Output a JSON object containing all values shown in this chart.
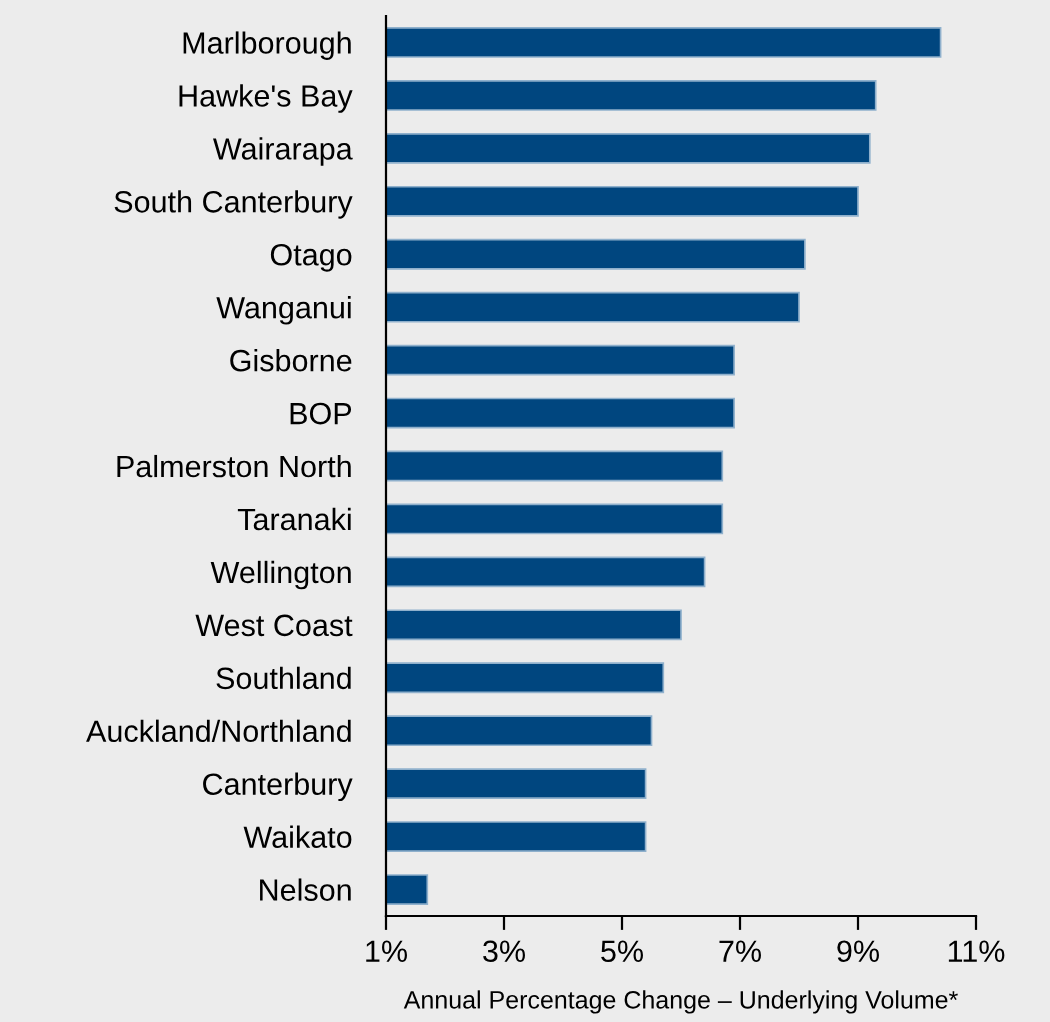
{
  "chart_data": {
    "type": "bar",
    "orientation": "horizontal",
    "xlabel": "Annual Percentage Change – Underlying Volume*",
    "categories": [
      "Marlborough",
      "Hawke's Bay",
      "Wairarapa",
      "South Canterbury",
      "Otago",
      "Wanganui",
      "Gisborne",
      "BOP",
      "Palmerston North",
      "Taranaki",
      "Wellington",
      "West Coast",
      "Southland",
      "Auckland/Northland",
      "Canterbury",
      "Waikato",
      "Nelson"
    ],
    "values": [
      10.4,
      9.3,
      9.2,
      9.0,
      8.1,
      8.0,
      6.9,
      6.9,
      6.7,
      6.7,
      6.4,
      6.0,
      5.7,
      5.5,
      5.4,
      5.4,
      1.7
    ],
    "color": "#00467f",
    "xlim": [
      1,
      11
    ],
    "xticks": [
      {
        "value": 1,
        "label": "1%"
      },
      {
        "value": 3,
        "label": "3%"
      },
      {
        "value": 5,
        "label": "5%"
      },
      {
        "value": 7,
        "label": "7%"
      },
      {
        "value": 9,
        "label": "9%"
      },
      {
        "value": 11,
        "label": "11%"
      }
    ],
    "grid": false
  }
}
